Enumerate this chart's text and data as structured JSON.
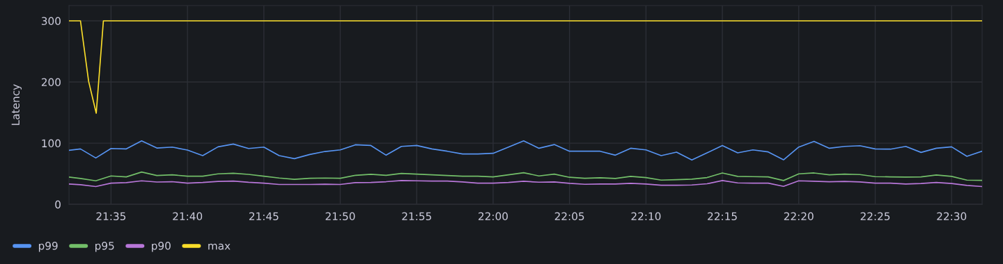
{
  "chart_data": {
    "type": "line",
    "ylabel": "Latency",
    "legend": "bottom",
    "grid": true,
    "marker": "none",
    "line_style": "solid",
    "xlim": [
      21.5375,
      22.5333
    ],
    "ylim": [
      0,
      325
    ],
    "xticks": [
      {
        "value": 21.5833,
        "label": "21:35"
      },
      {
        "value": 21.6667,
        "label": "21:40"
      },
      {
        "value": 21.75,
        "label": "21:45"
      },
      {
        "value": 21.8333,
        "label": "21:50"
      },
      {
        "value": 21.9167,
        "label": "21:55"
      },
      {
        "value": 22.0,
        "label": "22:00"
      },
      {
        "value": 22.0833,
        "label": "22:05"
      },
      {
        "value": 22.1667,
        "label": "22:10"
      },
      {
        "value": 22.25,
        "label": "22:15"
      },
      {
        "value": 22.3333,
        "label": "22:20"
      },
      {
        "value": 22.4167,
        "label": "22:25"
      },
      {
        "value": 22.5,
        "label": "22:30"
      }
    ],
    "yticks": [
      0,
      100,
      200,
      300
    ],
    "x": [
      21.5375,
      21.55,
      21.5667,
      21.5833,
      21.6,
      21.6167,
      21.6333,
      21.65,
      21.6667,
      21.6833,
      21.7,
      21.7167,
      21.7333,
      21.75,
      21.7667,
      21.7833,
      21.8,
      21.8167,
      21.8333,
      21.85,
      21.8667,
      21.8833,
      21.9,
      21.9167,
      21.9333,
      21.95,
      21.9667,
      21.9833,
      22.0,
      22.0167,
      22.0333,
      22.05,
      22.0667,
      22.0833,
      22.1,
      22.1167,
      22.1333,
      22.15,
      22.1667,
      22.1833,
      22.2,
      22.2167,
      22.2333,
      22.25,
      22.2667,
      22.2833,
      22.3,
      22.3167,
      22.3333,
      22.35,
      22.3667,
      22.3833,
      22.4,
      22.4167,
      22.4333,
      22.45,
      22.4667,
      22.4833,
      22.5,
      22.5167,
      22.5333
    ],
    "series": [
      {
        "name": "p99",
        "color": "#5794f2",
        "values": [
          88.3,
          90.6,
          75.8,
          91.3,
          90.6,
          103.8,
          92,
          93.6,
          88.7,
          79.6,
          94,
          98.5,
          91.3,
          93.6,
          79.6,
          74.7,
          81.5,
          86.4,
          89,
          97.4,
          96.2,
          80.4,
          94.7,
          96.2,
          90.6,
          86.8,
          82.3,
          82.3,
          83.4,
          93.6,
          103.8,
          91.7,
          97.7,
          86.8,
          86.8,
          86.8,
          80.4,
          91.7,
          89,
          79.6,
          85.3,
          72.5,
          84.2,
          96.2,
          84.2,
          89,
          85.7,
          72.8,
          93.6,
          103,
          91.7,
          94.7,
          95.8,
          90.6,
          90.2,
          94.7,
          84.9,
          91.7,
          94,
          78.5,
          86.8
        ]
      },
      {
        "name": "p95",
        "color": "#73bf69",
        "values": [
          44.5,
          42.3,
          38.5,
          46.4,
          44.9,
          52.8,
          47.2,
          48.3,
          46,
          46,
          49.8,
          50.9,
          49,
          46,
          43,
          40.8,
          42.6,
          43,
          42.6,
          47.5,
          49.1,
          47.5,
          50.6,
          49.4,
          48.3,
          47.2,
          46,
          46,
          44.9,
          48.3,
          51.7,
          46.4,
          49.4,
          44.2,
          42.6,
          43.4,
          42.3,
          45.7,
          43.8,
          39.6,
          40.4,
          41.1,
          43.8,
          51.3,
          45.7,
          45.3,
          44.9,
          38.9,
          49.8,
          51.3,
          48.3,
          49.4,
          48.7,
          45.3,
          44.9,
          44.5,
          44.9,
          47.9,
          45.7,
          39.6,
          39.2
        ]
      },
      {
        "name": "p90",
        "color": "#b877d9",
        "values": [
          33.2,
          32.1,
          29.1,
          34.7,
          35.5,
          38.5,
          36.5,
          37,
          34.7,
          35.8,
          37.5,
          38.1,
          36,
          34.7,
          32.5,
          32.5,
          32.5,
          33,
          32.5,
          35.5,
          35.8,
          37,
          38.9,
          38.5,
          38.1,
          38.1,
          36.6,
          34.7,
          34.7,
          35.8,
          37.7,
          36.2,
          36.6,
          34.3,
          32.8,
          33.2,
          33.2,
          34.3,
          33.2,
          31.3,
          31.3,
          31.7,
          33.6,
          38.9,
          35.1,
          34.7,
          34.7,
          29.4,
          38.5,
          37.7,
          37,
          37.4,
          36.6,
          34.7,
          34.7,
          33.2,
          34,
          35.8,
          34,
          30.9,
          29.1
        ]
      },
      {
        "name": "max",
        "color": "#fade2a",
        "x": [
          21.5375,
          21.55,
          21.5589,
          21.5672,
          21.575,
          22.5333
        ],
        "values": [
          300,
          300,
          201,
          149,
          300,
          300
        ]
      }
    ]
  }
}
